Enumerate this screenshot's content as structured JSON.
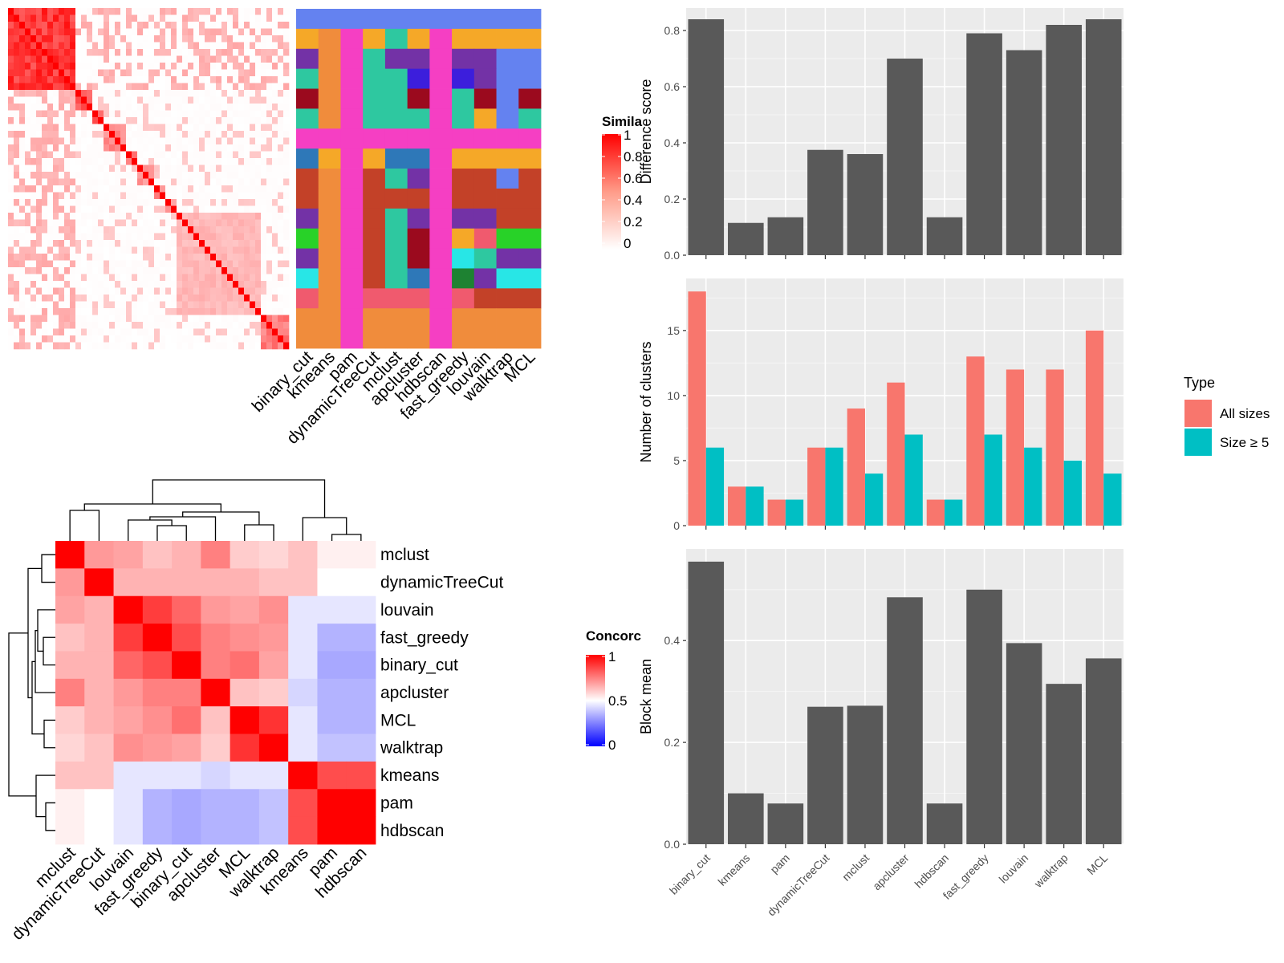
{
  "methods_bar_order": [
    "binary_cut",
    "kmeans",
    "pam",
    "dynamicTreeCut",
    "mclust",
    "apcluster",
    "hdbscan",
    "fast_greedy",
    "louvain",
    "walktrap",
    "MCL"
  ],
  "colors": {
    "bar_grey": "#595959",
    "panel_bg": "#EBEBEB",
    "all_sizes": "#F8766D",
    "size_ge5": "#00BFC4",
    "hm_high": "#FF0000",
    "hm_mid": "#FFFFFF",
    "hm_low": "#0000FF"
  },
  "similarity_heatmap": {
    "legend_title": "Simila",
    "legend_ticks": [
      "1",
      "0.8",
      "0.6",
      "0.4",
      "0.2",
      "0"
    ],
    "blocks": [
      [
        0,
        12,
        0.85
      ],
      [
        12,
        15,
        0.75
      ],
      [
        15,
        17,
        0.7
      ],
      [
        17,
        21,
        0.5
      ],
      [
        21,
        23,
        0.6
      ],
      [
        23,
        26,
        0.45
      ],
      [
        26,
        28,
        0.5
      ],
      [
        28,
        30,
        0.4
      ],
      [
        30,
        45,
        0.3
      ],
      [
        45,
        50,
        0.55
      ]
    ],
    "n": 50
  },
  "membership_grid": {
    "methods": [
      "binary_cut",
      "kmeans",
      "pam",
      "dynamicTreeCut",
      "mclust",
      "apcluster",
      "hdbscan",
      "fast_greedy",
      "louvain",
      "walktrap",
      "MCL"
    ],
    "palette": {
      "A": "#6482F0",
      "B": "#F5A828",
      "C": "#F08C3C",
      "D": "#F53FC3",
      "E": "#2EC8A0",
      "F": "#7332A6",
      "G": "#3C1EDC",
      "H": "#9B0A1E",
      "I": "#2E78B8",
      "J": "#C34128",
      "K": "#28D228",
      "L": "#F05A6E",
      "M": "#28E6E6",
      "N": "#1E8232"
    },
    "rows": [
      [
        "A",
        "A",
        "A",
        "A",
        "A",
        "A",
        "A",
        "A",
        "A",
        "A",
        "A"
      ],
      [
        "B",
        "C",
        "D",
        "B",
        "E",
        "B",
        "D",
        "B",
        "B",
        "B",
        "B"
      ],
      [
        "F",
        "C",
        "D",
        "E",
        "F",
        "F",
        "D",
        "F",
        "F",
        "A",
        "A"
      ],
      [
        "E",
        "C",
        "D",
        "E",
        "E",
        "G",
        "D",
        "G",
        "F",
        "A",
        "A"
      ],
      [
        "H",
        "C",
        "D",
        "E",
        "E",
        "H",
        "D",
        "E",
        "H",
        "A",
        "H"
      ],
      [
        "E",
        "C",
        "D",
        "E",
        "E",
        "E",
        "D",
        "E",
        "B",
        "A",
        "E"
      ],
      [
        "D",
        "D",
        "D",
        "D",
        "D",
        "D",
        "D",
        "D",
        "D",
        "D",
        "D"
      ],
      [
        "I",
        "B",
        "D",
        "B",
        "I",
        "I",
        "D",
        "B",
        "B",
        "B",
        "B"
      ],
      [
        "J",
        "C",
        "D",
        "J",
        "E",
        "F",
        "D",
        "J",
        "J",
        "A",
        "J"
      ],
      [
        "J",
        "C",
        "D",
        "J",
        "J",
        "J",
        "D",
        "J",
        "J",
        "J",
        "J"
      ],
      [
        "F",
        "C",
        "D",
        "J",
        "E",
        "F",
        "D",
        "F",
        "F",
        "J",
        "J"
      ],
      [
        "K",
        "C",
        "D",
        "J",
        "E",
        "H",
        "D",
        "B",
        "L",
        "K",
        "K"
      ],
      [
        "F",
        "C",
        "D",
        "J",
        "E",
        "H",
        "D",
        "M",
        "E",
        "F",
        "F"
      ],
      [
        "M",
        "C",
        "D",
        "J",
        "E",
        "I",
        "D",
        "N",
        "F",
        "M",
        "M"
      ],
      [
        "L",
        "C",
        "D",
        "L",
        "L",
        "L",
        "D",
        "L",
        "J",
        "J",
        "J"
      ],
      [
        "C",
        "C",
        "D",
        "C",
        "C",
        "C",
        "D",
        "C",
        "C",
        "C",
        "C"
      ],
      [
        "C",
        "C",
        "D",
        "C",
        "C",
        "C",
        "D",
        "C",
        "C",
        "C",
        "C"
      ]
    ]
  },
  "concordance_heatmap": {
    "legend_title": "Concorc",
    "legend_ticks": [
      "1",
      "0.5",
      "0"
    ],
    "methods": [
      "mclust",
      "dynamicTreeCut",
      "louvain",
      "fast_greedy",
      "binary_cut",
      "apcluster",
      "MCL",
      "walktrap",
      "kmeans",
      "pam",
      "hdbscan"
    ],
    "matrix": [
      [
        1.0,
        0.7,
        0.68,
        0.62,
        0.65,
        0.75,
        0.6,
        0.58,
        0.62,
        0.53,
        0.53
      ],
      [
        0.7,
        1.0,
        0.65,
        0.65,
        0.65,
        0.65,
        0.65,
        0.62,
        0.62,
        0.5,
        0.5
      ],
      [
        0.68,
        0.65,
        1.0,
        0.88,
        0.8,
        0.7,
        0.68,
        0.72,
        0.45,
        0.45,
        0.45
      ],
      [
        0.62,
        0.65,
        0.88,
        1.0,
        0.85,
        0.75,
        0.72,
        0.7,
        0.45,
        0.35,
        0.35
      ],
      [
        0.65,
        0.65,
        0.8,
        0.85,
        1.0,
        0.75,
        0.78,
        0.68,
        0.45,
        0.33,
        0.33
      ],
      [
        0.75,
        0.65,
        0.7,
        0.75,
        0.75,
        1.0,
        0.62,
        0.6,
        0.42,
        0.35,
        0.35
      ],
      [
        0.6,
        0.65,
        0.68,
        0.72,
        0.78,
        0.62,
        1.0,
        0.9,
        0.45,
        0.35,
        0.35
      ],
      [
        0.58,
        0.62,
        0.72,
        0.7,
        0.68,
        0.6,
        0.9,
        1.0,
        0.45,
        0.38,
        0.38
      ],
      [
        0.62,
        0.62,
        0.45,
        0.45,
        0.45,
        0.42,
        0.45,
        0.45,
        1.0,
        0.85,
        0.85
      ],
      [
        0.53,
        0.5,
        0.45,
        0.35,
        0.33,
        0.35,
        0.35,
        0.38,
        0.85,
        1.0,
        1.0
      ],
      [
        0.53,
        0.5,
        0.45,
        0.35,
        0.33,
        0.35,
        0.35,
        0.38,
        0.85,
        1.0,
        1.0
      ]
    ]
  },
  "chart_data": [
    {
      "type": "bar",
      "categories": [
        "binary_cut",
        "kmeans",
        "pam",
        "dynamicTreeCut",
        "mclust",
        "apcluster",
        "hdbscan",
        "fast_greedy",
        "louvain",
        "walktrap",
        "MCL"
      ],
      "values": [
        0.84,
        0.115,
        0.135,
        0.375,
        0.36,
        0.7,
        0.135,
        0.79,
        0.73,
        0.82,
        0.84
      ],
      "ylabel": "Difference score",
      "ylim": [
        0,
        0.88
      ],
      "yticks": [
        "0.0",
        "0.2",
        "0.4",
        "0.6",
        "0.8"
      ],
      "grid": true
    },
    {
      "type": "bar",
      "categories": [
        "binary_cut",
        "kmeans",
        "pam",
        "dynamicTreeCut",
        "mclust",
        "apcluster",
        "hdbscan",
        "fast_greedy",
        "louvain",
        "walktrap",
        "MCL"
      ],
      "series": [
        {
          "name": "All sizes",
          "values": [
            18,
            3,
            2,
            6,
            9,
            11,
            2,
            13,
            12,
            12,
            15
          ]
        },
        {
          "name": "Size ≥ 5",
          "values": [
            6,
            3,
            2,
            6,
            4,
            7,
            2,
            7,
            6,
            5,
            4
          ]
        }
      ],
      "ylabel": "Number of clusters",
      "ylim": [
        0,
        19
      ],
      "yticks": [
        "0",
        "5",
        "10",
        "15"
      ],
      "legend_title": "Type",
      "legend_position": "right",
      "grid": true
    },
    {
      "type": "bar",
      "categories": [
        "binary_cut",
        "kmeans",
        "pam",
        "dynamicTreeCut",
        "mclust",
        "apcluster",
        "hdbscan",
        "fast_greedy",
        "louvain",
        "walktrap",
        "MCL"
      ],
      "values": [
        0.555,
        0.1,
        0.08,
        0.27,
        0.272,
        0.485,
        0.08,
        0.5,
        0.395,
        0.315,
        0.365
      ],
      "ylabel": "Block mean",
      "ylim": [
        0,
        0.58
      ],
      "yticks": [
        "0.0",
        "0.2",
        "0.4"
      ],
      "grid": true
    }
  ]
}
